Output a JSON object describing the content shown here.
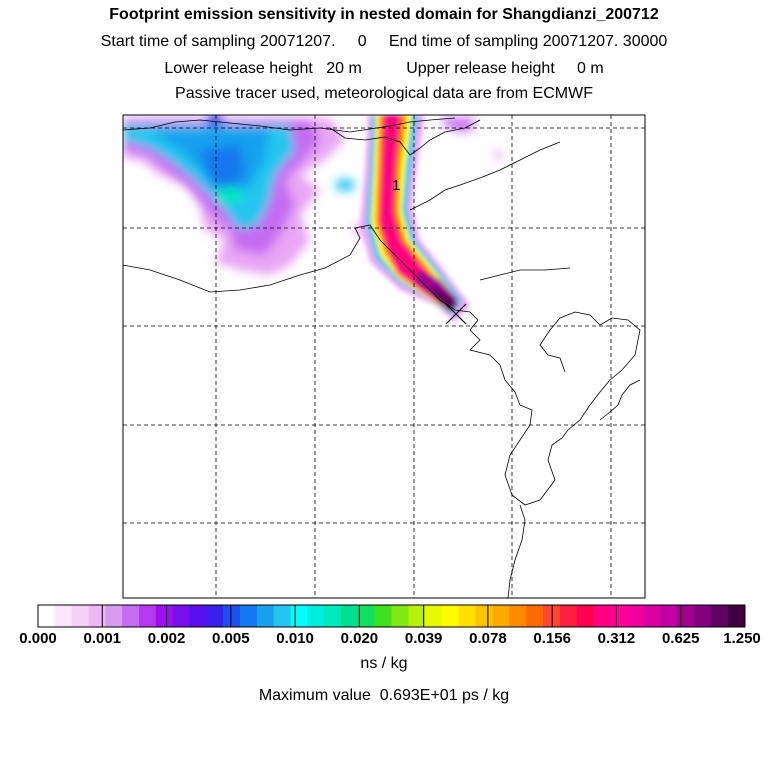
{
  "header": {
    "title": "Footprint emission sensitivity in nested domain for Shangdianzi_200712",
    "line1": "Start time of sampling 20071207.     0     End time of sampling 20071207. 30000",
    "line2": "Lower release height   20 m          Upper release height     0 m",
    "line3": "Passive tracer used, meteorological data are from ECMWF"
  },
  "map": {
    "label_1": "1",
    "station_marker": "x-marker-icon"
  },
  "colorbar": {
    "ticks": [
      "0.000",
      "0.001",
      "0.002",
      "0.005",
      "0.010",
      "0.020",
      "0.039",
      "0.078",
      "0.156",
      "0.312",
      "0.625",
      "1.250"
    ],
    "unit": "ns / kg",
    "colors": [
      "#ffffff",
      "#fbe6fb",
      "#f5d0f7",
      "#eeb8f3",
      "#d89bf0",
      "#c56cf0",
      "#b338ee",
      "#9a10ee",
      "#7a10ee",
      "#5a10ee",
      "#3a20ee",
      "#1e4eee",
      "#1478ee",
      "#18a0ee",
      "#22c6ee",
      "#00ffff",
      "#00eee0",
      "#00e8c0",
      "#00e090",
      "#10e060",
      "#40e020",
      "#80e810",
      "#b8f010",
      "#e8f800",
      "#fffb00",
      "#ffe000",
      "#ffc400",
      "#ffa800",
      "#ff8c00",
      "#ff6a00",
      "#ff4830",
      "#ff2040",
      "#ff0050",
      "#ff0080",
      "#ff0098",
      "#f000a0",
      "#d800a0",
      "#c000a0",
      "#a00090",
      "#800080",
      "#600060",
      "#400040"
    ]
  },
  "max_value": "Maximum value  0.693E+01 ps / kg"
}
